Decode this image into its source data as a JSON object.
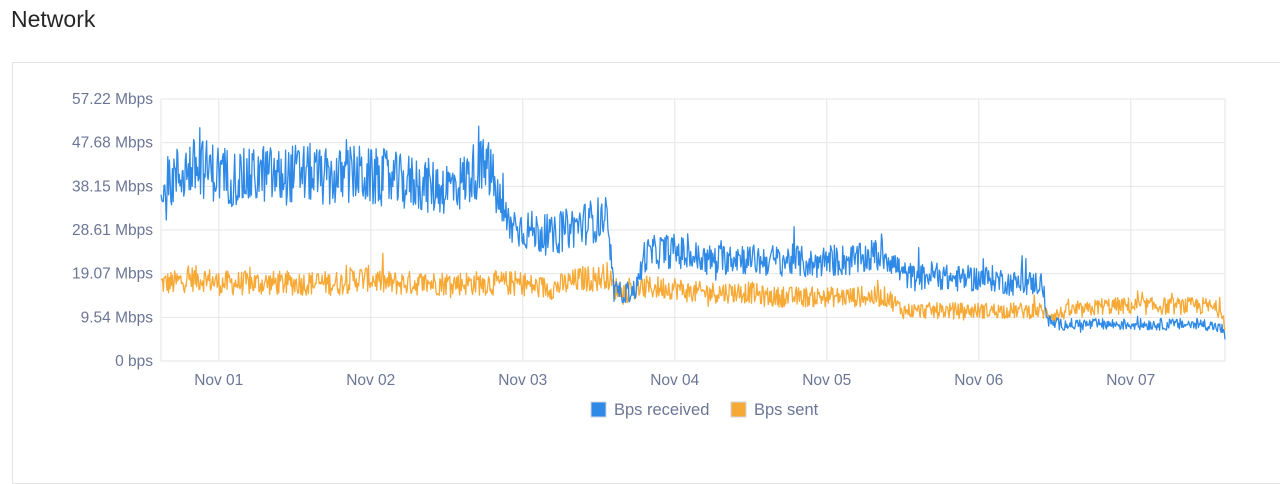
{
  "title": "Network",
  "colors": {
    "received": "#2e8ae6",
    "sent": "#f7a935",
    "grid": "#e6e6e6",
    "tick": "#6b7696"
  },
  "chart_data": {
    "type": "line",
    "title": "",
    "xlabel": "",
    "ylabel": "",
    "x_range_days": [
      0.62,
      7.62
    ],
    "ylim": [
      0,
      57.22
    ],
    "y_unit": "Mbps",
    "yticks": [
      {
        "v": 0,
        "label": "0 bps"
      },
      {
        "v": 9.54,
        "label": "9.54 Mbps"
      },
      {
        "v": 19.07,
        "label": "19.07 Mbps"
      },
      {
        "v": 28.61,
        "label": "28.61 Mbps"
      },
      {
        "v": 38.15,
        "label": "38.15 Mbps"
      },
      {
        "v": 47.68,
        "label": "47.68 Mbps"
      },
      {
        "v": 57.22,
        "label": "57.22 Mbps"
      }
    ],
    "xticks": [
      {
        "v": 1,
        "label": "Nov 01"
      },
      {
        "v": 2,
        "label": "Nov 02"
      },
      {
        "v": 3,
        "label": "Nov 03"
      },
      {
        "v": 4,
        "label": "Nov 04"
      },
      {
        "v": 5,
        "label": "Nov 05"
      },
      {
        "v": 6,
        "label": "Nov 06"
      },
      {
        "v": 7,
        "label": "Nov 07"
      }
    ],
    "grid": true,
    "legend_position": "bottom-center",
    "series": [
      {
        "name": "Bps received",
        "color": "#2e8ae6",
        "x": [
          0.62,
          0.7,
          0.8,
          0.9,
          1.0,
          1.1,
          1.2,
          1.3,
          1.4,
          1.5,
          1.6,
          1.7,
          1.8,
          1.9,
          2.0,
          2.1,
          2.2,
          2.3,
          2.4,
          2.5,
          2.6,
          2.7,
          2.78,
          2.85,
          2.9,
          3.0,
          3.1,
          3.2,
          3.3,
          3.4,
          3.5,
          3.55,
          3.6,
          3.7,
          3.75,
          3.8,
          3.9,
          4.0,
          4.1,
          4.2,
          4.3,
          4.4,
          4.5,
          4.6,
          4.7,
          4.8,
          4.9,
          5.0,
          5.1,
          5.2,
          5.3,
          5.4,
          5.5,
          5.6,
          5.7,
          5.8,
          5.9,
          6.0,
          6.1,
          6.2,
          6.3,
          6.4,
          6.42,
          6.45,
          6.5,
          6.6,
          6.7,
          6.8,
          6.9,
          7.0,
          7.1,
          7.2,
          7.3,
          7.4,
          7.5,
          7.6,
          7.62
        ],
        "y": [
          34,
          40,
          42,
          42,
          41,
          40,
          40,
          41,
          40,
          41,
          41,
          40,
          40,
          41,
          40,
          40,
          39,
          39,
          38,
          38,
          39,
          42,
          42,
          34,
          30,
          29,
          28,
          27,
          29,
          30,
          31,
          31,
          15,
          15,
          16,
          23,
          24,
          24,
          23,
          22,
          22,
          23,
          22,
          22,
          22,
          22,
          21,
          22,
          22,
          22,
          23,
          23,
          19,
          18,
          19,
          18,
          18,
          18,
          18,
          17,
          17,
          17,
          17,
          9,
          8,
          8,
          8,
          8,
          8,
          8,
          8,
          8,
          8,
          8,
          8,
          7,
          5
        ]
      },
      {
        "name": "Bps sent",
        "color": "#f7a935",
        "x": [
          0.62,
          0.7,
          0.8,
          0.9,
          1.0,
          1.1,
          1.2,
          1.3,
          1.4,
          1.5,
          1.6,
          1.7,
          1.8,
          1.9,
          2.0,
          2.1,
          2.2,
          2.3,
          2.4,
          2.5,
          2.6,
          2.7,
          2.8,
          2.9,
          3.0,
          3.1,
          3.2,
          3.3,
          3.4,
          3.5,
          3.55,
          3.6,
          3.7,
          3.8,
          3.9,
          4.0,
          4.1,
          4.2,
          4.3,
          4.4,
          4.5,
          4.6,
          4.7,
          4.8,
          4.9,
          5.0,
          5.1,
          5.2,
          5.3,
          5.4,
          5.5,
          5.6,
          5.7,
          5.8,
          5.9,
          6.0,
          6.1,
          6.2,
          6.3,
          6.4,
          6.5,
          6.6,
          6.7,
          6.8,
          6.9,
          7.0,
          7.1,
          7.2,
          7.3,
          7.4,
          7.5,
          7.6,
          7.62
        ],
        "y": [
          17,
          17,
          18,
          18,
          17,
          17,
          17,
          17,
          17,
          17,
          17,
          17,
          17,
          18,
          18,
          17,
          17,
          17,
          17,
          17,
          17,
          17,
          17,
          17,
          17,
          16,
          16,
          17,
          18,
          18,
          19,
          16,
          15,
          16,
          16,
          16,
          15,
          15,
          15,
          15,
          15,
          14,
          14,
          14,
          14,
          14,
          14,
          14,
          14,
          14,
          11,
          11,
          11,
          11,
          11,
          11,
          11,
          11,
          11,
          11,
          10,
          11,
          11,
          12,
          12,
          12,
          12,
          12,
          12,
          12,
          12,
          11,
          8
        ]
      }
    ]
  }
}
